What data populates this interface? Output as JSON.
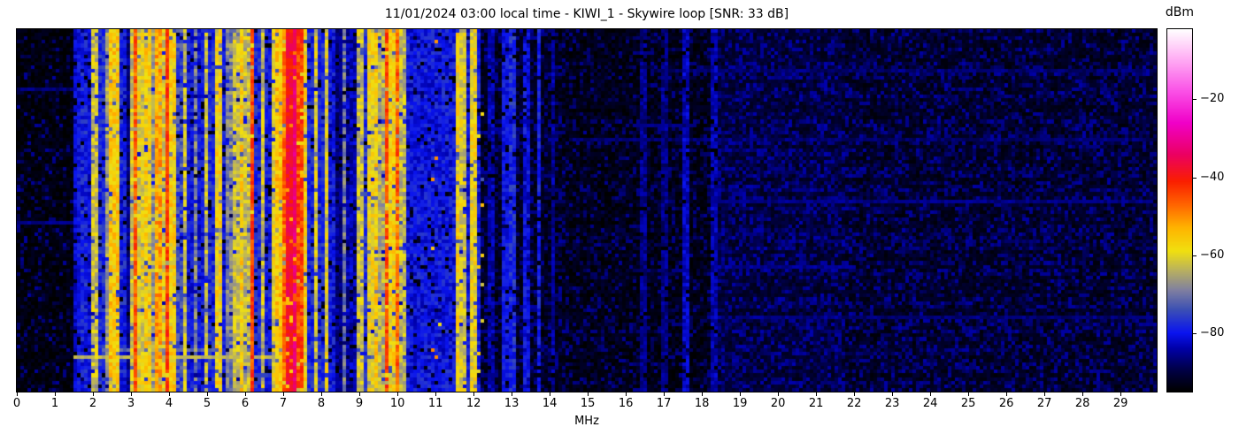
{
  "figure": {
    "title": "11/01/2024 03:00 local time - KIWI_1 - Skywire loop [SNR: 33 dB]",
    "xlabel": "MHz",
    "colorbar_label": "dBm"
  },
  "chart_data": {
    "type": "heatmap",
    "subtype": "radio-spectrogram-waterfall",
    "title": "11/01/2024 03:00 local time - KIWI_1 - Skywire loop [SNR: 33 dB]",
    "xlabel": "MHz",
    "x_ticks": [
      0,
      1,
      2,
      3,
      4,
      5,
      6,
      7,
      8,
      9,
      10,
      11,
      12,
      13,
      14,
      15,
      16,
      17,
      18,
      19,
      20,
      21,
      22,
      23,
      24,
      25,
      26,
      27,
      28,
      29
    ],
    "x_range_mhz": [
      0,
      29.95
    ],
    "value_range_dbm": [
      -95,
      -2
    ],
    "grid": false,
    "legend": "none",
    "colorbar": {
      "label": "dBm",
      "ticks": [
        -20,
        -40,
        -60,
        -80
      ],
      "position": "right"
    },
    "colormap_stops": [
      [
        -95,
        "#000000"
      ],
      [
        -89,
        "#00004e"
      ],
      [
        -84,
        "#0000a8"
      ],
      [
        -80,
        "#0a14f0"
      ],
      [
        -74,
        "#3c50b4"
      ],
      [
        -69,
        "#8080a0"
      ],
      [
        -64,
        "#b8b060"
      ],
      [
        -59,
        "#f0e010"
      ],
      [
        -53,
        "#ffb400"
      ],
      [
        -47,
        "#ff6400"
      ],
      [
        -41,
        "#fa1e00"
      ],
      [
        -34,
        "#eb0064"
      ],
      [
        -26,
        "#f000c8"
      ],
      [
        -18,
        "#fa50e6"
      ],
      [
        -9,
        "#ffb4f5"
      ],
      [
        -2,
        "#ffffff"
      ]
    ],
    "noise_regions": [
      [
        0.0,
        1.5,
        -94.0,
        -87.5,
        0.16
      ],
      [
        1.5,
        10.24,
        -87.0,
        -83.0,
        0.55
      ],
      [
        10.24,
        12.14,
        -83.0,
        -79.0,
        0.8
      ],
      [
        12.14,
        14.5,
        -93.0,
        -87.0,
        0.3
      ],
      [
        14.5,
        18.2,
        -93.5,
        -88.0,
        0.26
      ],
      [
        18.2,
        21.8,
        -91.5,
        -86.5,
        0.45
      ],
      [
        21.8,
        29.95,
        -92.5,
        -87.0,
        0.38
      ]
    ],
    "bands_dbm": [
      [
        1.52,
        1.58,
        -82,
        3
      ],
      [
        1.62,
        1.68,
        -80,
        3
      ],
      [
        1.76,
        1.88,
        -79,
        4
      ],
      [
        1.92,
        2.0,
        -81,
        3
      ],
      [
        2.02,
        2.1,
        -62,
        5
      ],
      [
        2.14,
        2.3,
        -78,
        4
      ],
      [
        2.34,
        2.46,
        -66,
        5
      ],
      [
        2.5,
        2.72,
        -56,
        5
      ],
      [
        2.76,
        2.9,
        -79,
        4
      ],
      [
        2.92,
        3.0,
        -86,
        3
      ],
      [
        3.0,
        3.1,
        -62,
        5
      ],
      [
        3.1,
        3.2,
        -46,
        5
      ],
      [
        3.2,
        3.34,
        -60,
        5
      ],
      [
        3.36,
        3.44,
        -79,
        4
      ],
      [
        3.44,
        3.58,
        -57,
        5
      ],
      [
        3.6,
        3.72,
        -66,
        6
      ],
      [
        3.72,
        3.84,
        -52,
        5
      ],
      [
        3.84,
        3.96,
        -61,
        5
      ],
      [
        3.96,
        4.06,
        -43,
        4
      ],
      [
        4.06,
        4.2,
        -57,
        5
      ],
      [
        4.22,
        4.36,
        -75,
        5
      ],
      [
        4.38,
        4.5,
        -62,
        5
      ],
      [
        4.52,
        4.66,
        -80,
        4
      ],
      [
        4.68,
        4.8,
        -69,
        5
      ],
      [
        4.82,
        4.94,
        -80,
        4
      ],
      [
        4.96,
        5.06,
        -63,
        5
      ],
      [
        5.08,
        5.2,
        -78,
        4
      ],
      [
        5.22,
        5.38,
        -58,
        5
      ],
      [
        5.4,
        5.54,
        -80,
        4
      ],
      [
        5.56,
        5.7,
        -69,
        5
      ],
      [
        5.72,
        5.84,
        -62,
        5
      ],
      [
        5.86,
        6.0,
        -57,
        5
      ],
      [
        6.0,
        6.12,
        -63,
        5
      ],
      [
        6.14,
        6.28,
        -44,
        5
      ],
      [
        6.3,
        6.42,
        -78,
        4
      ],
      [
        6.44,
        6.56,
        -62,
        5
      ],
      [
        6.58,
        6.68,
        -79,
        4
      ],
      [
        6.7,
        6.82,
        -60,
        5
      ],
      [
        6.84,
        7.02,
        -55,
        5
      ],
      [
        7.02,
        7.14,
        -47,
        5
      ],
      [
        7.14,
        7.3,
        -38,
        4
      ],
      [
        7.3,
        7.42,
        -33,
        3
      ],
      [
        7.42,
        7.52,
        -44,
        5
      ],
      [
        7.54,
        7.66,
        -58,
        5
      ],
      [
        7.68,
        7.82,
        -78,
        4
      ],
      [
        7.84,
        7.94,
        -61,
        5
      ],
      [
        7.96,
        8.1,
        -78,
        4
      ],
      [
        8.1,
        8.2,
        -60,
        5
      ],
      [
        8.22,
        8.36,
        -80,
        4
      ],
      [
        8.38,
        8.6,
        -86,
        3
      ],
      [
        8.62,
        8.72,
        -70,
        5
      ],
      [
        8.74,
        8.94,
        -84,
        4
      ],
      [
        8.96,
        9.1,
        -62,
        5
      ],
      [
        9.12,
        9.26,
        -78,
        4
      ],
      [
        9.28,
        9.42,
        -59,
        5
      ],
      [
        9.44,
        9.56,
        -56,
        5
      ],
      [
        9.58,
        9.68,
        -64,
        5
      ],
      [
        9.7,
        9.78,
        -44,
        4
      ],
      [
        9.8,
        9.94,
        -58,
        5
      ],
      [
        9.96,
        10.1,
        -47,
        5
      ],
      [
        10.12,
        10.22,
        -63,
        5
      ],
      [
        10.24,
        12.12,
        -80,
        4
      ],
      [
        10.9,
        11.12,
        -55,
        6,
        0.02
      ],
      [
        11.56,
        11.66,
        -58,
        5
      ],
      [
        11.7,
        11.78,
        -61,
        5
      ],
      [
        11.96,
        12.06,
        -59,
        5
      ],
      [
        12.14,
        12.2,
        -58,
        6,
        0.05
      ],
      [
        12.46,
        12.52,
        -84,
        3
      ],
      [
        12.78,
        12.85,
        -80,
        3
      ],
      [
        12.98,
        13.08,
        -78,
        4
      ],
      [
        13.32,
        13.4,
        -81,
        4
      ],
      [
        13.68,
        13.74,
        -79,
        3
      ],
      [
        14.05,
        14.12,
        -85,
        3
      ],
      [
        16.45,
        16.52,
        -86,
        3
      ],
      [
        17.0,
        17.06,
        -86,
        3
      ],
      [
        17.55,
        17.62,
        -83,
        3
      ],
      [
        18.3,
        18.36,
        -84,
        3
      ]
    ],
    "horizontal_streaks": [
      [
        0.9,
        1.5,
        7.35,
        -64
      ],
      [
        0.88,
        2.2,
        5.2,
        -72
      ],
      [
        0.53,
        0.0,
        1.6,
        -86
      ],
      [
        0.16,
        0.0,
        1.5,
        -87
      ],
      [
        0.3,
        14.5,
        29.9,
        -87.5
      ],
      [
        0.105,
        16.8,
        29.9,
        -87.5
      ],
      [
        0.47,
        18.2,
        29.9,
        -86
      ],
      [
        0.645,
        18.4,
        22.0,
        -85.5
      ],
      [
        0.79,
        19.0,
        29.9,
        -87
      ],
      [
        0.255,
        16.2,
        17.9,
        -86.5
      ]
    ]
  }
}
